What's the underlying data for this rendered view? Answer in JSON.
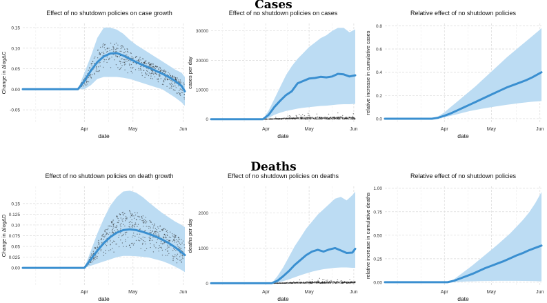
{
  "sections": {
    "cases_title": "Cases",
    "deaths_title": "Deaths"
  },
  "colors": {
    "band": "#bcdcf3",
    "line": "#3a8fd0",
    "points": "#222222",
    "grid": "#d9d9d9"
  },
  "chart_data": [
    {
      "id": "cases-growth",
      "type": "line",
      "title": "Effect of no shutdown policies on case growth",
      "xlabel": "date",
      "ylabel": "Change in ΔlogΔC",
      "xlim": [
        0,
        100
      ],
      "ylim": [
        -0.08,
        0.16
      ],
      "x_ticks": [
        {
          "v": 38,
          "label": "Apr"
        },
        {
          "v": 68,
          "label": "May"
        },
        {
          "v": 99,
          "label": "Jun"
        }
      ],
      "y_ticks": [
        {
          "v": -0.05,
          "label": "-0.05"
        },
        {
          "v": 0,
          "label": "0.00"
        },
        {
          "v": 0.05,
          "label": "0.05"
        },
        {
          "v": 0.1,
          "label": "0.10"
        },
        {
          "v": 0.15,
          "label": "0.15"
        }
      ],
      "series": [
        {
          "name": "estimate",
          "x": [
            0,
            34,
            38,
            42,
            46,
            50,
            54,
            58,
            62,
            66,
            70,
            74,
            78,
            82,
            86,
            90,
            94,
            98,
            100
          ],
          "y": [
            0,
            0,
            0.02,
            0.045,
            0.066,
            0.08,
            0.087,
            0.088,
            0.082,
            0.074,
            0.066,
            0.059,
            0.052,
            0.045,
            0.038,
            0.03,
            0.02,
            0.008,
            -0.005
          ]
        },
        {
          "name": "upper",
          "x": [
            34,
            38,
            42,
            46,
            50,
            54,
            58,
            62,
            66,
            70,
            74,
            78,
            82,
            86,
            90,
            94,
            98,
            100
          ],
          "y": [
            0,
            0.04,
            0.08,
            0.125,
            0.15,
            0.15,
            0.145,
            0.135,
            0.12,
            0.108,
            0.098,
            0.088,
            0.078,
            0.068,
            0.058,
            0.048,
            0.04,
            0.03
          ]
        },
        {
          "name": "lower",
          "x": [
            34,
            38,
            42,
            46,
            50,
            54,
            58,
            62,
            66,
            70,
            74,
            78,
            82,
            86,
            90,
            94,
            98,
            100
          ],
          "y": [
            0,
            0,
            0.01,
            0.025,
            0.03,
            0.03,
            0.03,
            0.028,
            0.025,
            0.02,
            0.015,
            0.01,
            0.005,
            0,
            -0.01,
            -0.02,
            -0.032,
            -0.04
          ]
        }
      ]
    },
    {
      "id": "cases-count",
      "type": "line",
      "title": "Effect of no shutdown policies on cases",
      "xlabel": "date",
      "ylabel": "cases per day",
      "xlim": [
        0,
        100
      ],
      "ylim": [
        -1000,
        32500
      ],
      "x_ticks": [
        {
          "v": 38,
          "label": "Apr"
        },
        {
          "v": 68,
          "label": "May"
        },
        {
          "v": 99,
          "label": "Jun"
        }
      ],
      "y_ticks": [
        {
          "v": 0,
          "label": "0"
        },
        {
          "v": 10000,
          "label": "10000"
        },
        {
          "v": 20000,
          "label": "20000"
        },
        {
          "v": 30000,
          "label": "30000"
        }
      ],
      "series": [
        {
          "name": "estimate",
          "x": [
            0,
            36,
            40,
            44,
            48,
            52,
            56,
            60,
            64,
            68,
            72,
            76,
            80,
            84,
            88,
            92,
            96,
            100
          ],
          "y": [
            0,
            0,
            1500,
            4200,
            6300,
            8200,
            9500,
            12200,
            13000,
            13800,
            14000,
            14400,
            14200,
            14500,
            15400,
            15200,
            14500,
            14900
          ]
        },
        {
          "name": "upper",
          "x": [
            36,
            40,
            44,
            48,
            52,
            56,
            60,
            64,
            68,
            72,
            76,
            80,
            84,
            88,
            92,
            96,
            100
          ],
          "y": [
            0,
            3000,
            7000,
            11000,
            15000,
            18000,
            20500,
            22500,
            24500,
            26000,
            27500,
            28500,
            30000,
            31000,
            31000,
            29500,
            30500
          ]
        },
        {
          "name": "lower",
          "x": [
            36,
            40,
            44,
            48,
            52,
            56,
            60,
            64,
            68,
            72,
            76,
            80,
            84,
            88,
            92,
            96,
            100
          ],
          "y": [
            0,
            500,
            1500,
            2200,
            2800,
            3200,
            3600,
            3900,
            4100,
            4300,
            4500,
            4600,
            4800,
            5000,
            5100,
            5100,
            5200
          ]
        }
      ]
    },
    {
      "id": "cases-relative",
      "type": "line",
      "title": "Relative effect of no shutdown policies",
      "xlabel": "date",
      "ylabel": "relative increase in cumulative cases",
      "xlim": [
        0,
        100
      ],
      "ylim": [
        -0.03,
        0.82
      ],
      "x_ticks": [
        {
          "v": 38,
          "label": "Apr"
        },
        {
          "v": 68,
          "label": "May"
        },
        {
          "v": 99,
          "label": "Jun"
        }
      ],
      "y_ticks": [
        {
          "v": 0,
          "label": "0.0"
        },
        {
          "v": 0.2,
          "label": "0.2"
        },
        {
          "v": 0.4,
          "label": "0.4"
        },
        {
          "v": 0.6,
          "label": "0.6"
        },
        {
          "v": 0.8,
          "label": "0.8"
        }
      ],
      "series": [
        {
          "name": "estimate",
          "x": [
            0,
            30,
            34,
            38,
            42,
            46,
            50,
            54,
            58,
            62,
            66,
            70,
            74,
            78,
            82,
            86,
            90,
            94,
            98,
            100
          ],
          "y": [
            0,
            0,
            0.008,
            0.025,
            0.045,
            0.07,
            0.095,
            0.12,
            0.145,
            0.17,
            0.195,
            0.22,
            0.245,
            0.27,
            0.29,
            0.31,
            0.33,
            0.355,
            0.385,
            0.4
          ]
        },
        {
          "name": "upper",
          "x": [
            30,
            34,
            38,
            42,
            46,
            50,
            54,
            58,
            62,
            66,
            70,
            74,
            78,
            82,
            86,
            90,
            94,
            98,
            100
          ],
          "y": [
            0,
            0.02,
            0.055,
            0.1,
            0.145,
            0.19,
            0.235,
            0.28,
            0.33,
            0.38,
            0.43,
            0.48,
            0.53,
            0.575,
            0.62,
            0.665,
            0.71,
            0.755,
            0.78
          ]
        },
        {
          "name": "lower",
          "x": [
            30,
            34,
            38,
            42,
            46,
            50,
            54,
            58,
            62,
            66,
            70,
            74,
            78,
            82,
            86,
            90,
            94,
            98,
            100
          ],
          "y": [
            0,
            0.004,
            0.012,
            0.025,
            0.038,
            0.052,
            0.065,
            0.076,
            0.086,
            0.095,
            0.104,
            0.112,
            0.12,
            0.127,
            0.134,
            0.14,
            0.146,
            0.15,
            0.152
          ]
        }
      ]
    },
    {
      "id": "deaths-growth",
      "type": "line",
      "title": "Effect of no shutdown policies on death growth",
      "xlabel": "date",
      "ylabel": "Change in ΔlogΔD",
      "xlim": [
        0,
        100
      ],
      "ylim": [
        -0.04,
        0.19
      ],
      "x_ticks": [
        {
          "v": 38,
          "label": "Apr"
        },
        {
          "v": 68,
          "label": "May"
        },
        {
          "v": 99,
          "label": "Jun"
        }
      ],
      "y_ticks": [
        {
          "v": 0,
          "label": "0.00"
        },
        {
          "v": 0.025,
          "label": "0.025"
        },
        {
          "v": 0.05,
          "label": "0.05"
        },
        {
          "v": 0.075,
          "label": "0.075"
        },
        {
          "v": 0.1,
          "label": "0.10"
        },
        {
          "v": 0.125,
          "label": "0.125"
        },
        {
          "v": 0.15,
          "label": "0.15"
        }
      ],
      "series": [
        {
          "name": "estimate",
          "x": [
            0,
            38,
            42,
            46,
            50,
            54,
            58,
            62,
            66,
            70,
            74,
            78,
            82,
            86,
            90,
            94,
            98,
            100
          ],
          "y": [
            0,
            0,
            0.02,
            0.04,
            0.058,
            0.072,
            0.082,
            0.088,
            0.09,
            0.088,
            0.084,
            0.079,
            0.073,
            0.066,
            0.058,
            0.048,
            0.036,
            0.03
          ]
        },
        {
          "name": "upper",
          "x": [
            38,
            42,
            46,
            50,
            54,
            58,
            62,
            66,
            70,
            74,
            78,
            82,
            86,
            90,
            94,
            98,
            100
          ],
          "y": [
            0,
            0.04,
            0.08,
            0.115,
            0.145,
            0.165,
            0.178,
            0.18,
            0.175,
            0.165,
            0.152,
            0.14,
            0.128,
            0.118,
            0.108,
            0.1,
            0.095
          ]
        },
        {
          "name": "lower",
          "x": [
            38,
            42,
            46,
            50,
            54,
            58,
            62,
            66,
            70,
            74,
            78,
            82,
            86,
            90,
            94,
            98,
            100
          ],
          "y": [
            0,
            0.005,
            0.01,
            0.015,
            0.02,
            0.025,
            0.028,
            0.028,
            0.027,
            0.026,
            0.024,
            0.02,
            0.016,
            0.01,
            0.003,
            -0.005,
            -0.01
          ]
        }
      ]
    },
    {
      "id": "deaths-count",
      "type": "line",
      "title": "Effect of no shutdown policies on deaths",
      "xlabel": "date",
      "ylabel": "deaths per day",
      "xlim": [
        0,
        100
      ],
      "ylim": [
        -50,
        2750
      ],
      "x_ticks": [
        {
          "v": 38,
          "label": "Apr"
        },
        {
          "v": 68,
          "label": "May"
        },
        {
          "v": 99,
          "label": "Jun"
        }
      ],
      "y_ticks": [
        {
          "v": 0,
          "label": "0"
        },
        {
          "v": 1000,
          "label": "1000"
        },
        {
          "v": 2000,
          "label": "2000"
        }
      ],
      "series": [
        {
          "name": "estimate",
          "x": [
            0,
            42,
            46,
            50,
            54,
            58,
            62,
            66,
            70,
            74,
            78,
            82,
            86,
            90,
            94,
            98,
            100
          ],
          "y": [
            0,
            0,
            70,
            200,
            350,
            520,
            660,
            800,
            900,
            950,
            900,
            960,
            1000,
            930,
            860,
            870,
            980
          ]
        },
        {
          "name": "upper",
          "x": [
            42,
            46,
            50,
            54,
            58,
            62,
            66,
            70,
            74,
            78,
            82,
            86,
            90,
            94,
            98,
            100
          ],
          "y": [
            0,
            200,
            450,
            750,
            1050,
            1300,
            1550,
            1750,
            1950,
            2100,
            2250,
            2400,
            2450,
            2350,
            2500,
            2600
          ]
        },
        {
          "name": "lower",
          "x": [
            42,
            46,
            50,
            54,
            58,
            62,
            66,
            70,
            74,
            78,
            82,
            86,
            90,
            94,
            98,
            100
          ],
          "y": [
            0,
            20,
            60,
            110,
            170,
            230,
            280,
            330,
            370,
            400,
            420,
            440,
            450,
            450,
            440,
            440
          ]
        }
      ]
    },
    {
      "id": "deaths-relative",
      "type": "line",
      "title": "Relative effect of no shutdown policies",
      "xlabel": "date",
      "ylabel": "relative increase in cumulative deaths",
      "xlim": [
        0,
        100
      ],
      "ylim": [
        -0.03,
        1.02
      ],
      "x_ticks": [
        {
          "v": 38,
          "label": "Apr"
        },
        {
          "v": 68,
          "label": "May"
        },
        {
          "v": 99,
          "label": "Jun"
        }
      ],
      "y_ticks": [
        {
          "v": 0,
          "label": "0.00"
        },
        {
          "v": 0.25,
          "label": "0.25"
        },
        {
          "v": 0.5,
          "label": "0.50"
        },
        {
          "v": 0.75,
          "label": "0.75"
        },
        {
          "v": 1.0,
          "label": "1.00"
        }
      ],
      "series": [
        {
          "name": "estimate",
          "x": [
            0,
            40,
            44,
            48,
            52,
            56,
            60,
            64,
            68,
            72,
            76,
            80,
            84,
            88,
            92,
            96,
            100
          ],
          "y": [
            0,
            0,
            0.015,
            0.04,
            0.065,
            0.09,
            0.12,
            0.15,
            0.175,
            0.2,
            0.225,
            0.255,
            0.285,
            0.31,
            0.34,
            0.365,
            0.39
          ]
        },
        {
          "name": "upper",
          "x": [
            40,
            44,
            48,
            52,
            56,
            60,
            64,
            68,
            72,
            76,
            80,
            84,
            88,
            92,
            96,
            100
          ],
          "y": [
            0,
            0.03,
            0.08,
            0.13,
            0.18,
            0.235,
            0.29,
            0.345,
            0.4,
            0.46,
            0.52,
            0.59,
            0.66,
            0.74,
            0.84,
            0.96
          ]
        },
        {
          "name": "lower",
          "x": [
            40,
            44,
            48,
            52,
            56,
            60,
            64,
            68,
            72,
            76,
            80,
            84,
            88,
            92,
            96,
            100
          ],
          "y": [
            0,
            0.002,
            0.005,
            0.008,
            0.01,
            0.012,
            0.013,
            0.014,
            0.015,
            0.015,
            0.015,
            0.015,
            0.014,
            0.013,
            0.012,
            0.01
          ]
        }
      ]
    }
  ]
}
